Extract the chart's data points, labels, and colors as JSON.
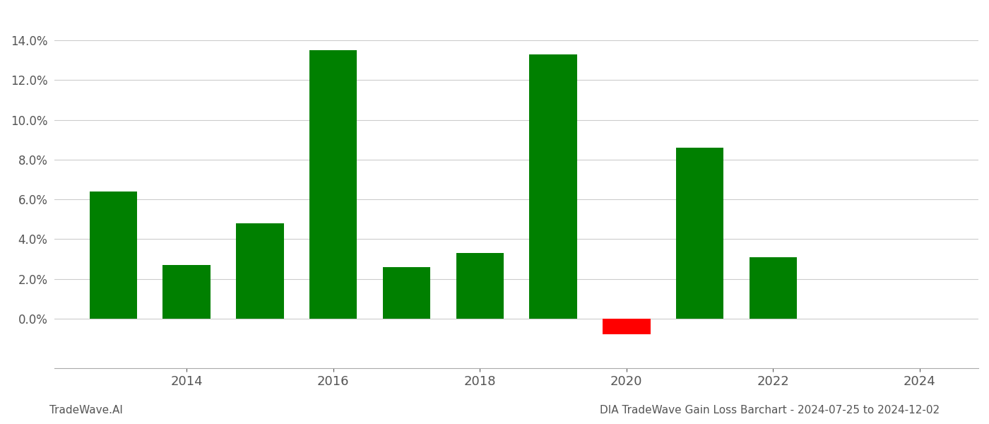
{
  "years": [
    2013,
    2014,
    2015,
    2016,
    2017,
    2018,
    2019,
    2020,
    2021,
    2022,
    2023
  ],
  "values": [
    0.064,
    0.027,
    0.048,
    0.135,
    0.026,
    0.033,
    0.133,
    -0.008,
    0.086,
    0.031,
    0.0
  ],
  "bar_colors": [
    "#008000",
    "#008000",
    "#008000",
    "#008000",
    "#008000",
    "#008000",
    "#008000",
    "#ff0000",
    "#008000",
    "#008000",
    "#ffffff"
  ],
  "title": "DIA TradeWave Gain Loss Barchart - 2024-07-25 to 2024-12-02",
  "watermark": "TradeWave.AI",
  "ylim": [
    -0.025,
    0.155
  ],
  "yticks": [
    0.0,
    0.02,
    0.04,
    0.06,
    0.08,
    0.1,
    0.12,
    0.14
  ],
  "xtick_positions": [
    2014,
    2016,
    2018,
    2020,
    2022,
    2024
  ],
  "xtick_labels": [
    "2014",
    "2016",
    "2018",
    "2020",
    "2022",
    "2024"
  ],
  "xlim": [
    2012.2,
    2024.8
  ],
  "background_color": "#ffffff",
  "grid_color": "#cccccc",
  "bar_width": 0.65,
  "title_fontsize": 11,
  "watermark_fontsize": 11,
  "tick_fontsize": 13,
  "ytick_fontsize": 12,
  "tick_color": "#555555",
  "title_color": "#555555",
  "spine_color": "#aaaaaa"
}
